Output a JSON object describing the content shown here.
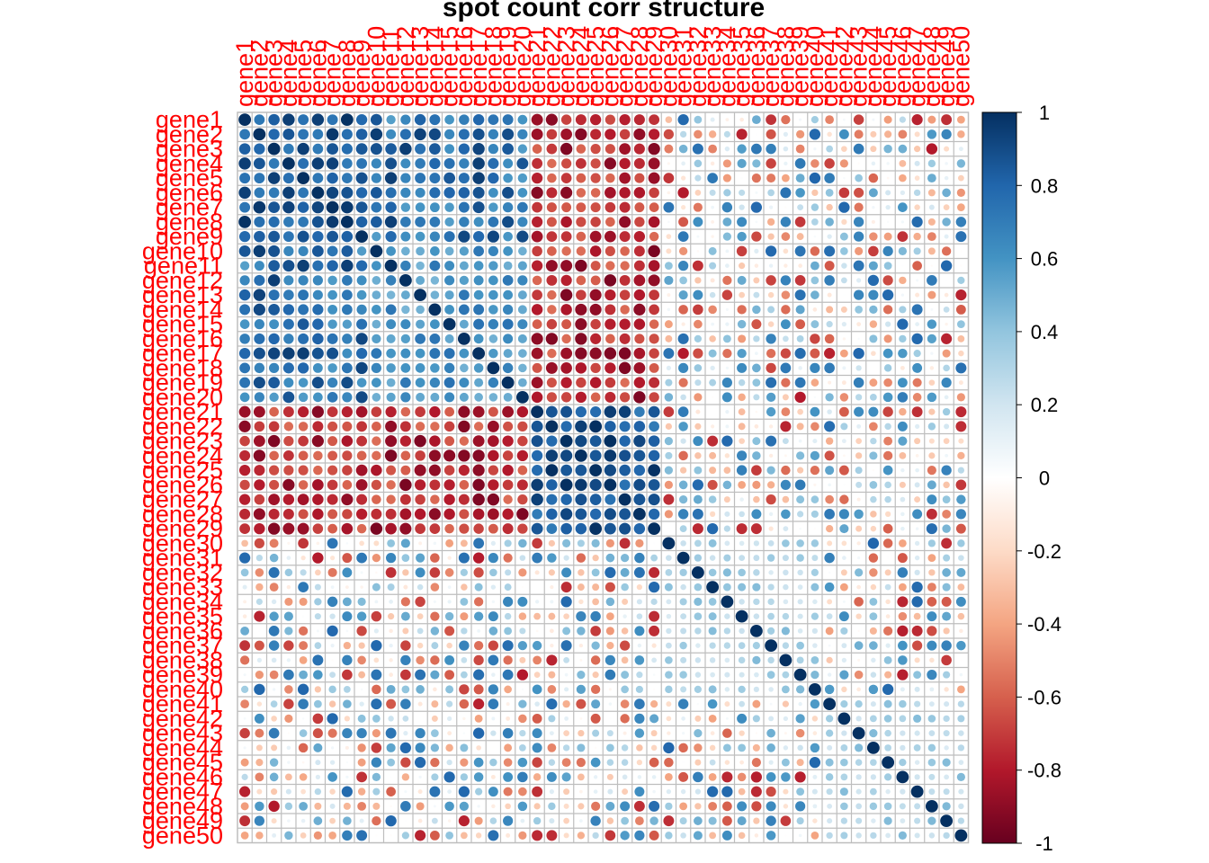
{
  "chart_data": {
    "type": "heatmap",
    "title": "spot count corr structure",
    "xlabel": "",
    "ylabel": "",
    "labels": [
      "gene1",
      "gene2",
      "gene3",
      "gene4",
      "gene5",
      "gene6",
      "gene7",
      "gene8",
      "gene9",
      "gene10",
      "gene11",
      "gene12",
      "gene13",
      "gene14",
      "gene15",
      "gene16",
      "gene17",
      "gene18",
      "gene19",
      "gene20",
      "gene21",
      "gene22",
      "gene23",
      "gene24",
      "gene25",
      "gene26",
      "gene27",
      "gene28",
      "gene29",
      "gene30",
      "gene31",
      "gene32",
      "gene33",
      "gene34",
      "gene35",
      "gene36",
      "gene37",
      "gene38",
      "gene39",
      "gene40",
      "gene41",
      "gene42",
      "gene43",
      "gene44",
      "gene45",
      "gene46",
      "gene47",
      "gene48",
      "gene49",
      "gene50"
    ],
    "glyph": "circle",
    "grid": true,
    "value_range": [
      -1,
      1
    ],
    "block_structure": {
      "note": "cell values estimated from circle size and color",
      "groups": [
        {
          "genes": [
            1,
            2,
            3,
            4,
            5,
            6,
            7,
            8,
            9
          ],
          "within": 0.85
        },
        {
          "genes": [
            10,
            11,
            12,
            13,
            14,
            15,
            16,
            17,
            18,
            19,
            20
          ],
          "within": 0.6
        },
        {
          "genes": [
            21,
            22,
            23,
            24,
            25,
            26,
            27,
            28,
            29
          ],
          "within": 0.85
        },
        {
          "genes": [
            30,
            31,
            32,
            33,
            34,
            35,
            36,
            37,
            38,
            39,
            40
          ],
          "within": 0.3
        },
        {
          "genes": [
            41,
            42,
            43,
            44,
            45,
            46,
            47,
            48,
            49,
            50
          ],
          "within": 0.3
        }
      ]
    },
    "colorbar": {
      "ticks": [
        1,
        0.8,
        0.6,
        0.4,
        0.2,
        0,
        -0.2,
        -0.4,
        -0.6,
        -0.8,
        -1
      ],
      "tick_labels": [
        "1",
        "0.8",
        "0.6",
        "0.4",
        "0.2",
        "0",
        "-0.2",
        "-0.4",
        "-0.6",
        "-0.8",
        "-1"
      ],
      "colors_high_to_low": [
        "#053061",
        "#2166ac",
        "#4393c3",
        "#92c5de",
        "#d1e5f0",
        "#ffffff",
        "#fddbc7",
        "#f4a582",
        "#d6604d",
        "#b2182b",
        "#67001f"
      ]
    },
    "label_color": "#ff0000",
    "grid_color": "#bebebe"
  }
}
